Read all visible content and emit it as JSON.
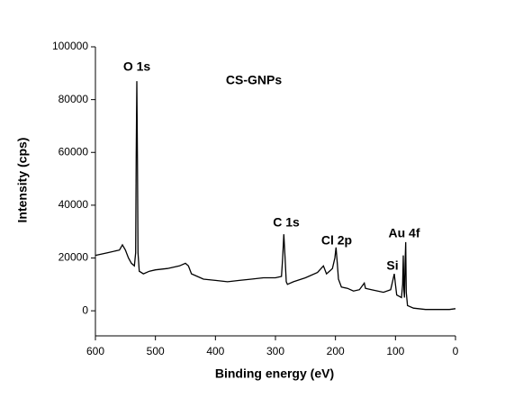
{
  "chart_data": {
    "type": "line",
    "x_label": "Binding energy (eV)",
    "y_label": "Intensity (cps)",
    "x": [
      600,
      580,
      560,
      555,
      550,
      545,
      540,
      535,
      533,
      532,
      531,
      530,
      529,
      527,
      520,
      510,
      500,
      480,
      460,
      450,
      445,
      440,
      430,
      420,
      400,
      380,
      360,
      340,
      320,
      300,
      290,
      288,
      286,
      284,
      282,
      280,
      270,
      250,
      230,
      220,
      215,
      210,
      205,
      201,
      199,
      197,
      195,
      190,
      180,
      170,
      160,
      152,
      150,
      140,
      120,
      108,
      104,
      102,
      100,
      98,
      90,
      88,
      87,
      86,
      85,
      84,
      83,
      82,
      80,
      70,
      50,
      30,
      10,
      0
    ],
    "series": [
      {
        "name": "CS-GNPs",
        "color": "#000000",
        "values": [
          21000,
          22000,
          23000,
          25000,
          23000,
          20000,
          18000,
          17000,
          22000,
          58000,
          87000,
          57000,
          22000,
          15000,
          14000,
          15000,
          15500,
          16000,
          17000,
          18000,
          17000,
          14000,
          13000,
          12000,
          11500,
          11000,
          11500,
          12000,
          12500,
          12500,
          13000,
          20000,
          29000,
          20000,
          11000,
          10000,
          11000,
          12500,
          14500,
          17000,
          14000,
          15000,
          16000,
          20000,
          24000,
          18000,
          12000,
          9000,
          8500,
          7500,
          8000,
          10500,
          8500,
          8000,
          7000,
          8000,
          12000,
          14000,
          10000,
          6000,
          5000,
          10000,
          21000,
          8000,
          5000,
          18000,
          26000,
          7000,
          2000,
          1000,
          500,
          500,
          500,
          800
        ]
      }
    ],
    "annotations": [
      "O 1s",
      "C 1s",
      "Cl 2p",
      "Au 4f",
      "Si"
    ],
    "xlim": [
      600,
      0
    ],
    "ylim": [
      -9500,
      100000
    ],
    "xticks": [
      600,
      500,
      400,
      300,
      200,
      100,
      0
    ],
    "yticks": [
      0,
      20000,
      40000,
      60000,
      80000,
      100000
    ]
  }
}
